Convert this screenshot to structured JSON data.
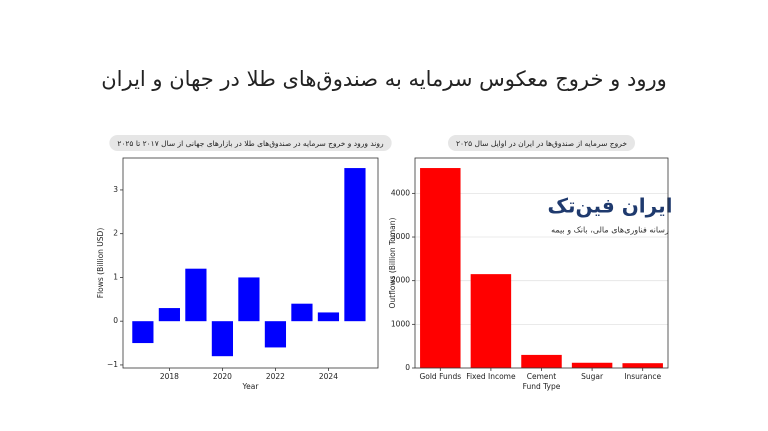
{
  "title": "ورود و خروج معکوس سرمایه به صندوق‌های طلا در جهان و ایران",
  "logo": {
    "name": "ایران فین‌تک",
    "tagline": "رسانه فناوری‌های مالی، بانک و بیمه"
  },
  "chart_data": [
    {
      "type": "bar",
      "title": "روند ورود و خروج سرمایه در صندوق‌های طلا در بازارهای جهانی از سال ۲۰۱۷ تا ۲۰۲۵",
      "x": [
        2017,
        2018,
        2019,
        2020,
        2021,
        2022,
        2023,
        2024,
        2025
      ],
      "values": [
        -0.5,
        0.3,
        1.2,
        -0.8,
        1.0,
        -0.6,
        0.4,
        0.2,
        3.5
      ],
      "color": "#0000ff",
      "xlabel": "Year",
      "ylabel": "Flows (Billion USD)",
      "xlim": [
        2016.25,
        2025.87
      ],
      "xticks": [
        2018,
        2020,
        2022,
        2024
      ],
      "ylim": [
        -1.07,
        3.73
      ],
      "yticks": [
        {
          "value": -1,
          "label": "−1"
        },
        0,
        1,
        2,
        3
      ],
      "grid": false
    },
    {
      "type": "bar",
      "title": "خروج سرمایه از صندوق‌ها  در ایران در اوایل سال ۲۰۲۵",
      "categories": [
        "Gold Funds",
        "Fixed Income",
        "Cement",
        "Sugar",
        "Insurance"
      ],
      "values": [
        4580,
        2150,
        300,
        120,
        110
      ],
      "color": "#ff0000",
      "xlabel": "Fund Type",
      "ylabel": "Outflows (Billion Toman)",
      "ylim": [
        0,
        4810
      ],
      "yticks": [
        0,
        1000,
        2000,
        3000,
        4000
      ],
      "grid": true
    }
  ]
}
